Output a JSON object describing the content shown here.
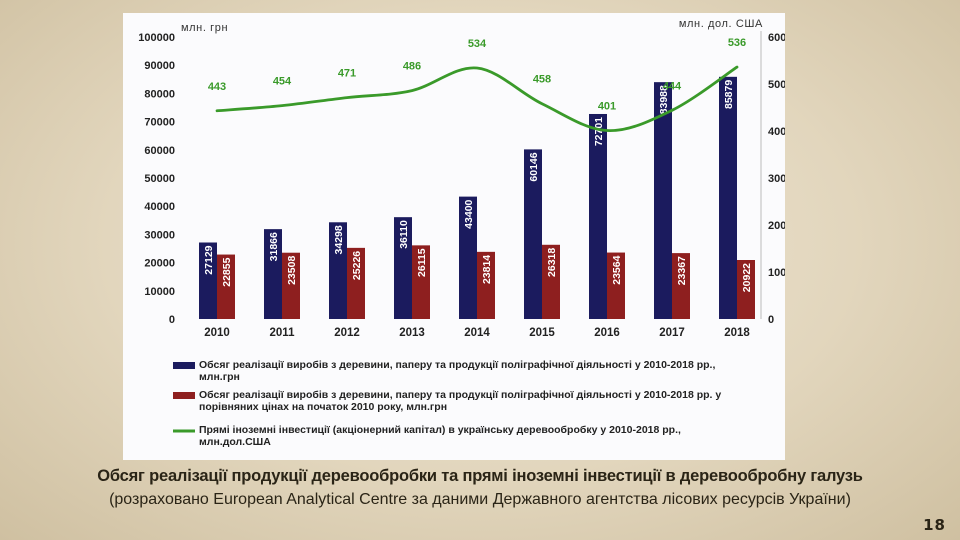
{
  "caption": {
    "title": "Обсяг реалізації продукції деревообробки та прямі іноземні інвестиції в деревообробну галузь",
    "source": "(розраховано European Analytical Centre за даними Державного агентства лісових ресурсів України)"
  },
  "page_number": "18",
  "colors": {
    "series_current": "#1b1b5e",
    "series_comparable": "#8e1f1f",
    "series_investment": "#3a9a2a",
    "axis_text": "#222222",
    "slide_background": "#e2d6bd"
  },
  "chart_data": {
    "type": "bar",
    "combo": "bar+line",
    "categories": [
      "2010",
      "2011",
      "2012",
      "2013",
      "2014",
      "2015",
      "2016",
      "2017",
      "2018"
    ],
    "left_axis": {
      "label": "млн. грн",
      "min": 0,
      "max": 100000,
      "ticks": [
        "0",
        "10000",
        "20000",
        "30000",
        "40000",
        "50000",
        "60000",
        "70000",
        "80000",
        "90000",
        "100000"
      ]
    },
    "right_axis": {
      "label": "млн. дол. США",
      "min": 0,
      "max": 600,
      "ticks": [
        "0",
        "100",
        "200",
        "300",
        "400",
        "500",
        "600"
      ]
    },
    "grid": false,
    "legend_position": "bottom",
    "series": [
      {
        "name": "Обсяг реалізації виробів з деревини, паперу та продукції поліграфічної діяльності у 2010-2018 рр., млн.грн",
        "type": "bar",
        "axis": "left",
        "values": [
          27129,
          31866,
          34298,
          36110,
          43400,
          60146,
          72701,
          83988,
          85879
        ],
        "labels": [
          "27129",
          "31866",
          "34298",
          "36110",
          "43400",
          "60146",
          "72701",
          "83988",
          "85879"
        ]
      },
      {
        "name": "Обсяг реалізації виробів з деревини, паперу та продукції поліграфічної діяльності у 2010-2018 рр. у порівняних цінах на початок 2010 року, млн.грн",
        "type": "bar",
        "axis": "left",
        "values": [
          22855,
          23508,
          25226,
          26115,
          23814,
          26318,
          23564,
          23367,
          20922
        ],
        "labels": [
          "22855",
          "23508",
          "25226",
          "26115",
          "23814",
          "26318",
          "23564",
          "23367",
          "20922"
        ]
      },
      {
        "name": "Прямі іноземні інвестиції (акціонерний капітал) в українську деревообробку у 2010-2018 рр., млн.дол.США",
        "type": "line",
        "axis": "right",
        "values": [
          443,
          454,
          471,
          486,
          534,
          458,
          401,
          444,
          536
        ],
        "labels": [
          "443",
          "454",
          "471",
          "486",
          "534",
          "458",
          "401",
          "444",
          "536"
        ]
      }
    ]
  }
}
